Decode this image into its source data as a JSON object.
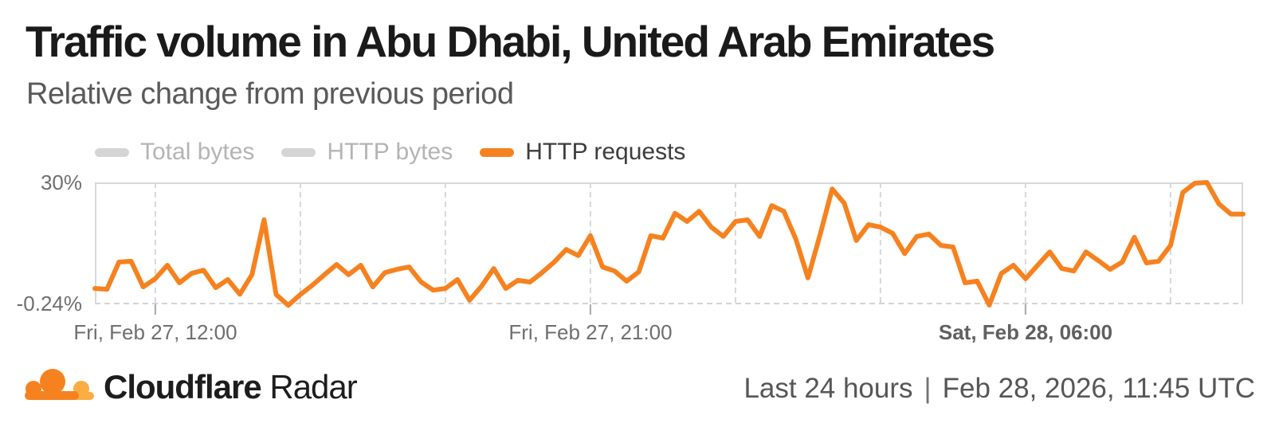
{
  "header": {
    "title": "Traffic volume in Abu Dhabi, United Arab Emirates",
    "subtitle": "Relative change from previous period"
  },
  "legend": {
    "items": [
      {
        "label": "Total bytes",
        "active": false
      },
      {
        "label": "HTTP bytes",
        "active": false
      },
      {
        "label": "HTTP requests",
        "active": true
      }
    ]
  },
  "chart_data": {
    "type": "line",
    "title": "Traffic volume in Abu Dhabi, United Arab Emirates",
    "subtitle": "Relative change from previous period",
    "unit": "% relative change",
    "ylim": [
      -0.24,
      30
    ],
    "y_axis_labels": {
      "max": "30%",
      "min": "-0.24%"
    },
    "x_range": "last 24 hours, 15-minute intervals",
    "grid": "vertical-dashed",
    "legend_position": "top",
    "x_ticks": [
      {
        "label": "Fri, Feb 27, 12:00",
        "position": 0.0527,
        "bold": false
      },
      {
        "label": "Fri, Feb 27, 21:00",
        "position": 0.4316,
        "bold": false
      },
      {
        "label": "Sat, Feb 28, 06:00",
        "position": 0.8105,
        "bold": true
      }
    ],
    "gridline_positions": [
      0.0527,
      0.179,
      0.3053,
      0.4316,
      0.5579,
      0.6842,
      0.8105,
      0.9368
    ],
    "series": [
      {
        "name": "HTTP requests",
        "color": "#F6821F",
        "values": [
          3.9,
          3.7,
          10.4,
          10.6,
          4.3,
          6.3,
          9.6,
          5.3,
          7.6,
          8.4,
          4.1,
          6.1,
          2.5,
          7.3,
          20.8,
          2.4,
          -0.24,
          2.4,
          4.7,
          7.3,
          9.8,
          7.3,
          9.6,
          4.3,
          7.8,
          8.6,
          9.2,
          5.5,
          3.5,
          3.9,
          6.1,
          1.0,
          4.5,
          8.8,
          3.9,
          5.9,
          5.5,
          7.8,
          10.4,
          13.5,
          12.0,
          16.9,
          9.2,
          8.2,
          5.7,
          8.0,
          16.9,
          16.3,
          22.4,
          20.4,
          22.9,
          19.0,
          16.7,
          20.4,
          20.8,
          16.7,
          24.3,
          22.9,
          16.0,
          6.5,
          17.1,
          28.4,
          24.9,
          15.7,
          19.6,
          19.0,
          17.5,
          12.5,
          16.7,
          17.3,
          14.5,
          14.1,
          5.3,
          5.7,
          -0.2,
          7.6,
          9.6,
          6.3,
          9.6,
          12.9,
          8.8,
          8.2,
          12.9,
          10.8,
          8.6,
          10.4,
          16.5,
          10.2,
          10.6,
          14.5,
          27.5,
          29.8,
          30.0,
          24.7,
          22.2,
          22.2
        ]
      }
    ]
  },
  "footer": {
    "brand_bold": "Cloudflare",
    "brand_regular": "Radar",
    "timeframe": "Last 24 hours",
    "separator": "|",
    "timestamp": "Feb 28, 2026, 11:45 UTC"
  },
  "colors": {
    "accent": "#F6821F",
    "accent_light": "#FBAD41",
    "inactive_pill": "#D5D5D5",
    "grid": "#D8D8D8",
    "axis_text": "#6F6F6F"
  }
}
